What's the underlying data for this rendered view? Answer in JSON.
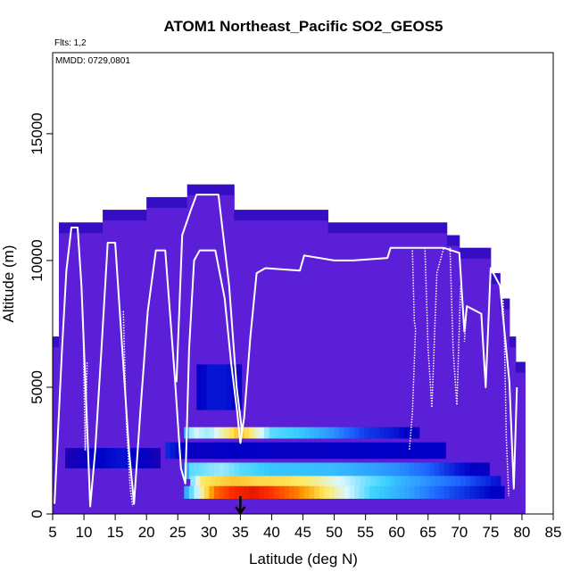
{
  "chart_data": {
    "type": "heatmap",
    "title": "ATOM1 Northeast_Pacific SO2_GEOS5",
    "subtitle": "Flts: 1,2",
    "annotation": "MMDD: 0729,0801",
    "xlabel": "Latitude (deg N)",
    "ylabel": "Altitude (m)",
    "xlim": [
      5,
      85
    ],
    "ylim": [
      0,
      18200
    ],
    "x_ticks": [
      5,
      10,
      15,
      20,
      25,
      30,
      35,
      40,
      45,
      50,
      55,
      60,
      65,
      70,
      75,
      80,
      85
    ],
    "y_ticks": [
      0,
      5000,
      10000,
      15000
    ],
    "marker": {
      "latitude": 35,
      "symbol": "arrow"
    },
    "colors": {
      "background_fill": "#5a1fd6",
      "track": "#ffffff",
      "scale": [
        "#2e00a8",
        "#0000c8",
        "#1e64ff",
        "#3cd2ff",
        "#dcf8ff",
        "#ffe85a",
        "#ff9600",
        "#ff2800",
        "#b40000"
      ]
    },
    "column_tops_m": [
      [
        5,
        7000
      ],
      [
        6,
        11500
      ],
      [
        13,
        12000
      ],
      [
        20,
        12500
      ],
      [
        26.5,
        13000
      ],
      [
        34,
        12000
      ],
      [
        49,
        11500
      ],
      [
        68,
        11000
      ],
      [
        70,
        10500
      ],
      [
        75,
        9500
      ],
      [
        76.5,
        8500
      ],
      [
        78,
        7000
      ],
      [
        79,
        6000
      ],
      [
        80.5,
        6000
      ]
    ],
    "plumes": [
      {
        "alt": 3200,
        "thickness": 450,
        "from_lat": 26,
        "to_lat": 63,
        "stops": [
          [
            26,
            0.3
          ],
          [
            27.5,
            0.5
          ],
          [
            30,
            0.45
          ],
          [
            35,
            0.7
          ],
          [
            40,
            0.4
          ],
          [
            45,
            0.36
          ],
          [
            50,
            0.3
          ],
          [
            55,
            0.2
          ],
          [
            60,
            0.15
          ],
          [
            63,
            0.1
          ]
        ]
      },
      {
        "alt": 2500,
        "thickness": 650,
        "from_lat": 23,
        "to_lat": 67,
        "stops": [
          [
            23,
            0.18
          ],
          [
            27,
            0.1
          ],
          [
            35,
            0.12
          ],
          [
            45,
            0.1
          ],
          [
            55,
            0.12
          ],
          [
            67,
            0.12
          ]
        ]
      },
      {
        "alt": 1700,
        "thickness": 650,
        "from_lat": 26,
        "to_lat": 74,
        "stops": [
          [
            26,
            0.28
          ],
          [
            27,
            0.4
          ],
          [
            32,
            0.45
          ],
          [
            35,
            0.4
          ],
          [
            40,
            0.36
          ],
          [
            50,
            0.35
          ],
          [
            60,
            0.3
          ],
          [
            65,
            0.25
          ],
          [
            70,
            0.15
          ],
          [
            74,
            0.1
          ]
        ]
      },
      {
        "alt": 1250,
        "thickness": 500,
        "from_lat": 27,
        "to_lat": 76,
        "stops": [
          [
            27,
            0.4
          ],
          [
            29,
            0.62
          ],
          [
            34,
            0.68
          ],
          [
            38,
            0.65
          ],
          [
            42,
            0.64
          ],
          [
            46,
            0.6
          ],
          [
            50,
            0.52
          ],
          [
            55,
            0.42
          ],
          [
            60,
            0.35
          ],
          [
            65,
            0.3
          ],
          [
            70,
            0.25
          ],
          [
            76,
            0.15
          ]
        ]
      },
      {
        "alt": 850,
        "thickness": 500,
        "from_lat": 26,
        "to_lat": 77,
        "stops": [
          [
            26,
            0.3
          ],
          [
            28,
            0.48
          ],
          [
            31,
            0.8
          ],
          [
            34,
            0.88
          ],
          [
            37,
            0.92
          ],
          [
            40,
            0.86
          ],
          [
            44,
            0.78
          ],
          [
            48,
            0.64
          ],
          [
            52,
            0.5
          ],
          [
            56,
            0.38
          ],
          [
            62,
            0.32
          ],
          [
            70,
            0.2
          ],
          [
            77,
            0.1
          ]
        ]
      },
      {
        "alt": 5000,
        "thickness": 1800,
        "from_lat": 28,
        "to_lat": 35,
        "stops": [
          [
            28,
            0.1
          ],
          [
            30,
            0.15
          ],
          [
            33,
            0.15
          ],
          [
            35,
            0.08
          ]
        ]
      },
      {
        "alt": 2200,
        "thickness": 800,
        "from_lat": 7,
        "to_lat": 22,
        "stops": [
          [
            7,
            0.05
          ],
          [
            12,
            0.12
          ],
          [
            16,
            0.15
          ],
          [
            20,
            0.1
          ],
          [
            22,
            0.05
          ]
        ]
      }
    ],
    "flight_track": [
      [
        5.3,
        400
      ],
      [
        6.5,
        6500
      ],
      [
        7.2,
        9600
      ],
      [
        8.0,
        11300
      ],
      [
        9.0,
        11300
      ],
      [
        9.6,
        9000
      ],
      [
        10.5,
        3500
      ],
      [
        11.0,
        300
      ],
      [
        11.8,
        2500
      ],
      [
        12.8,
        6500
      ],
      [
        13.8,
        10700
      ],
      [
        15.0,
        10700
      ],
      [
        16.0,
        7000
      ],
      [
        17.2,
        2500
      ],
      [
        18.0,
        400
      ],
      [
        19.0,
        4000
      ],
      [
        20.2,
        8000
      ],
      [
        21.5,
        10400
      ],
      [
        23.0,
        10400
      ],
      [
        24.5,
        5500
      ],
      [
        25.5,
        1800
      ],
      [
        26.2,
        1200
      ],
      [
        26.8,
        6500
      ],
      [
        27.6,
        10000
      ],
      [
        28.5,
        10400
      ],
      [
        31.0,
        10400
      ],
      [
        32.5,
        8500
      ],
      [
        33.5,
        6000
      ],
      [
        34.5,
        4000
      ],
      [
        35.0,
        2800
      ],
      [
        35.6,
        3800
      ],
      [
        36.6,
        7000
      ],
      [
        37.6,
        9500
      ],
      [
        39.0,
        9700
      ],
      [
        44.5,
        9600
      ],
      [
        45.2,
        10200
      ],
      [
        50.0,
        10000
      ],
      [
        53.0,
        10000
      ],
      [
        58.5,
        10100
      ],
      [
        59.0,
        10500
      ],
      [
        62.0,
        10500
      ],
      [
        67.5,
        10500
      ],
      [
        70.0,
        10300
      ],
      [
        70.8,
        7200
      ],
      [
        71.2,
        8200
      ],
      [
        73.5,
        7900
      ],
      [
        74.2,
        5000
      ],
      [
        75.0,
        9700
      ],
      [
        76.5,
        9000
      ],
      [
        78.0,
        5200
      ],
      [
        78.7,
        1000
      ],
      [
        79.2,
        5000
      ]
    ],
    "flight_track_upper": [
      [
        24.8,
        5200
      ],
      [
        25.7,
        11000
      ],
      [
        27.1,
        12000
      ],
      [
        28.0,
        12600
      ],
      [
        31.5,
        12600
      ],
      [
        33.2,
        9000
      ],
      [
        34.4,
        5000
      ],
      [
        35.3,
        3200
      ]
    ],
    "flight_track_spikes": [
      [
        [
          9.6,
          9000
        ],
        [
          9.9,
          7000
        ],
        [
          10.2,
          2500
        ],
        [
          10.5,
          6000
        ]
      ],
      [
        [
          16.3,
          8000
        ],
        [
          16.8,
          3500
        ],
        [
          17.4,
          1000
        ],
        [
          17.8,
          300
        ]
      ],
      [
        [
          62.5,
          10400
        ],
        [
          62.8,
          7600
        ],
        [
          63.0,
          7300
        ],
        [
          62.5,
          4000
        ],
        [
          62.0,
          2500
        ]
      ],
      [
        [
          64.5,
          10500
        ],
        [
          65.0,
          6500
        ],
        [
          65.6,
          4200
        ],
        [
          66.4,
          9500
        ],
        [
          67.5,
          10500
        ]
      ],
      [
        [
          68.5,
          10500
        ],
        [
          69.0,
          6500
        ],
        [
          69.6,
          4300
        ],
        [
          70.2,
          9000
        ]
      ],
      [
        [
          71.2,
          8200
        ],
        [
          70.8,
          6800
        ]
      ],
      [
        [
          76.8,
          9700
        ],
        [
          77.2,
          7000
        ],
        [
          77.5,
          3000
        ],
        [
          77.9,
          700
        ]
      ]
    ]
  }
}
